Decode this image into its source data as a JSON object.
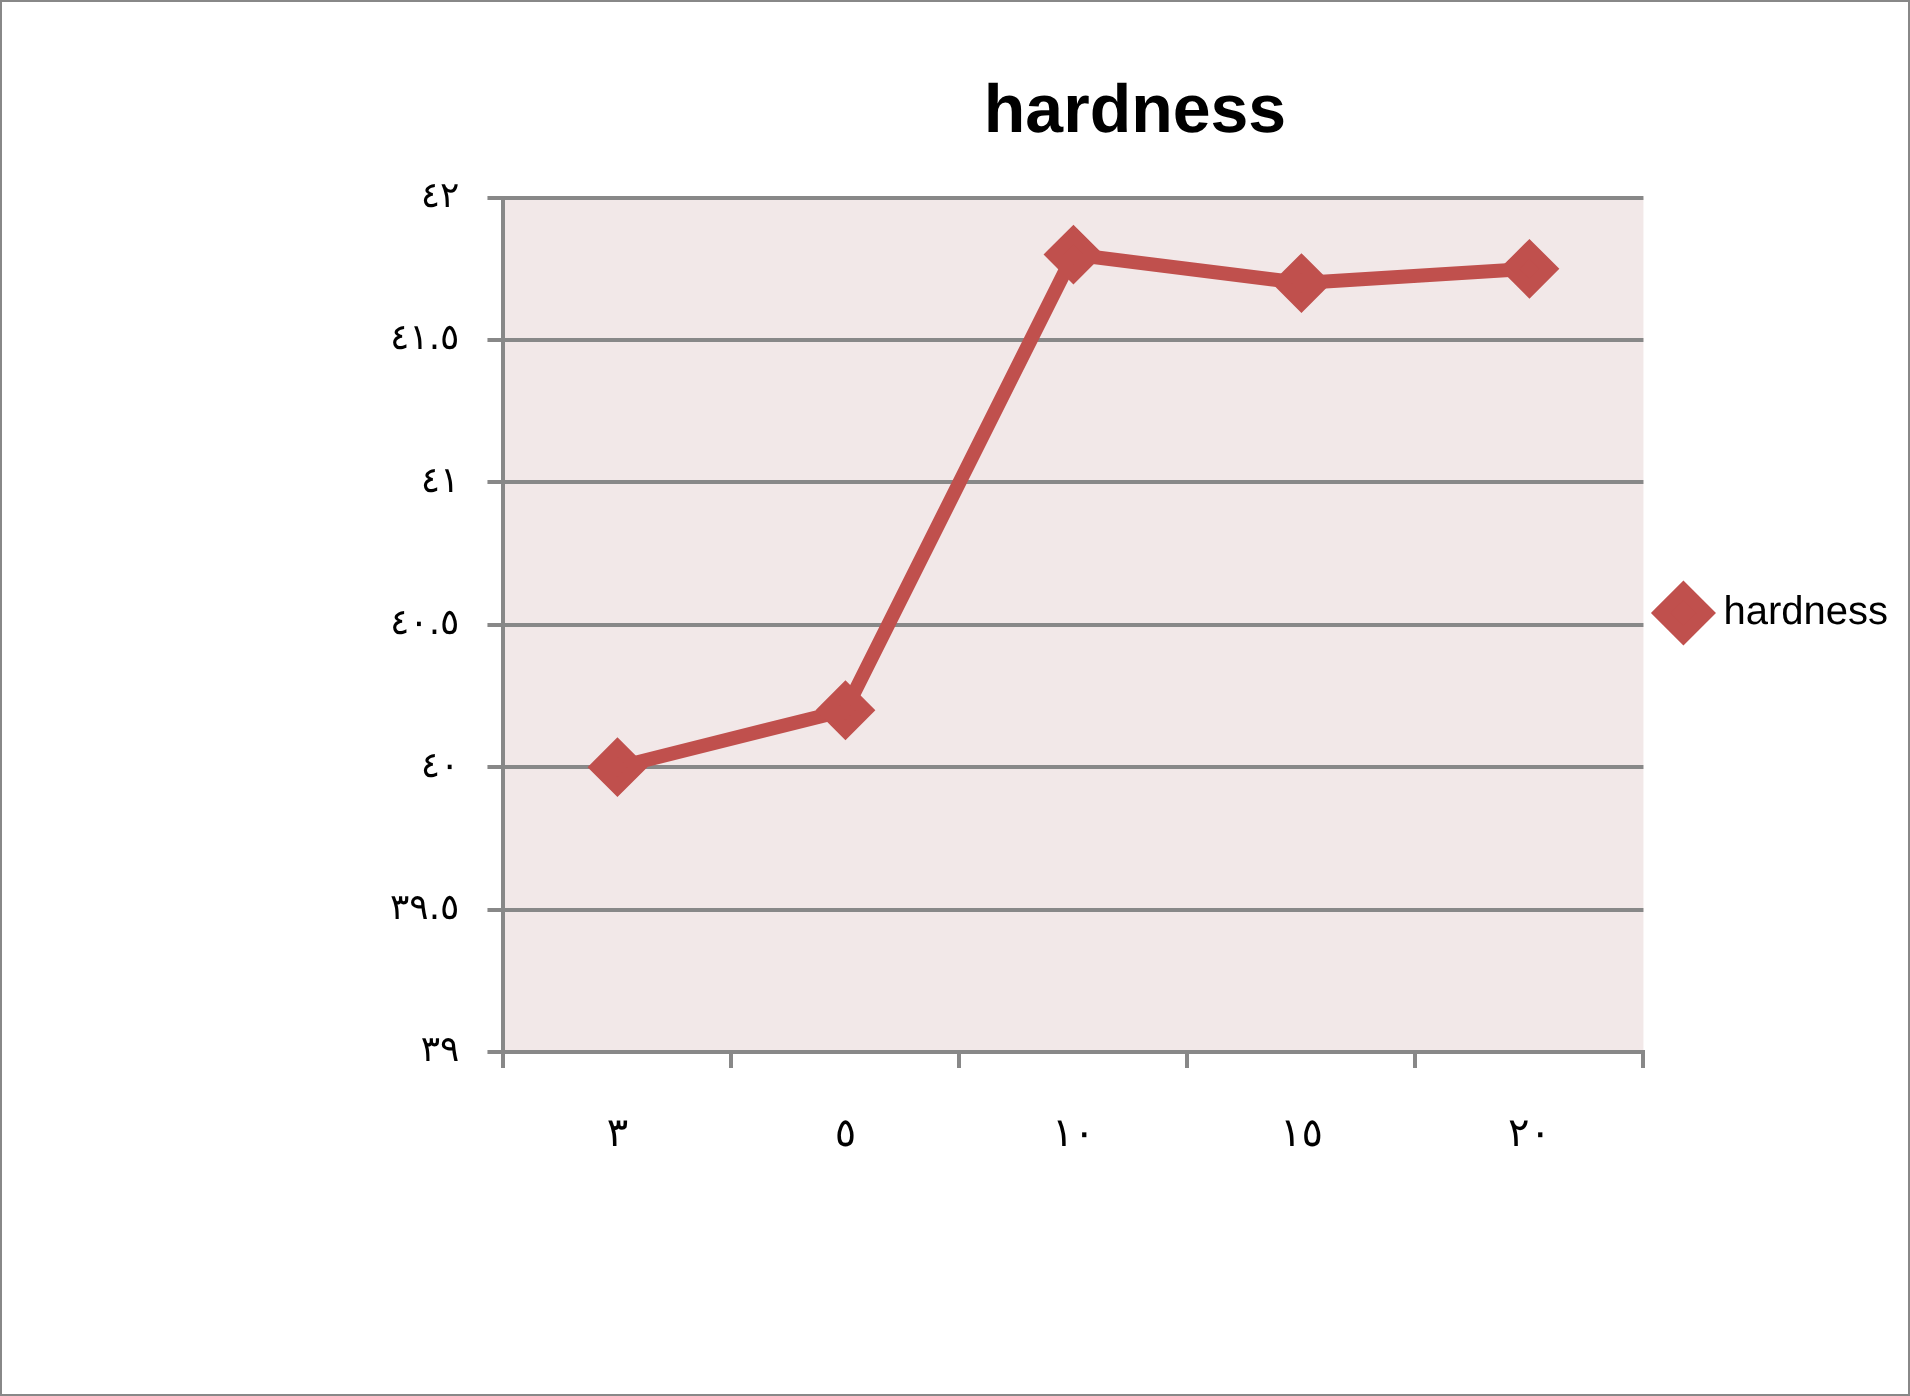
{
  "chart_data": {
    "type": "line",
    "title": "hardness",
    "categories": [
      "٣",
      "٥",
      "١٠",
      "١٥",
      "٢٠"
    ],
    "series": [
      {
        "name": "hardness",
        "color": "#c0504d",
        "values": [
          40.0,
          40.2,
          41.8,
          41.7,
          41.75
        ]
      }
    ],
    "ylim": [
      39,
      42
    ],
    "yticks": [
      {
        "value": 39,
        "label": "٣٩"
      },
      {
        "value": 39.5,
        "label": "٣٩.٥"
      },
      {
        "value": 40,
        "label": "٤٠"
      },
      {
        "value": 40.5,
        "label": "٤٠.٥"
      },
      {
        "value": 41,
        "label": "٤١"
      },
      {
        "value": 41.5,
        "label": "٤١.٥"
      },
      {
        "value": 42,
        "label": "٤٢"
      }
    ],
    "grid": "y",
    "legend": "right",
    "marker": "diamond",
    "line_style": "solid"
  }
}
